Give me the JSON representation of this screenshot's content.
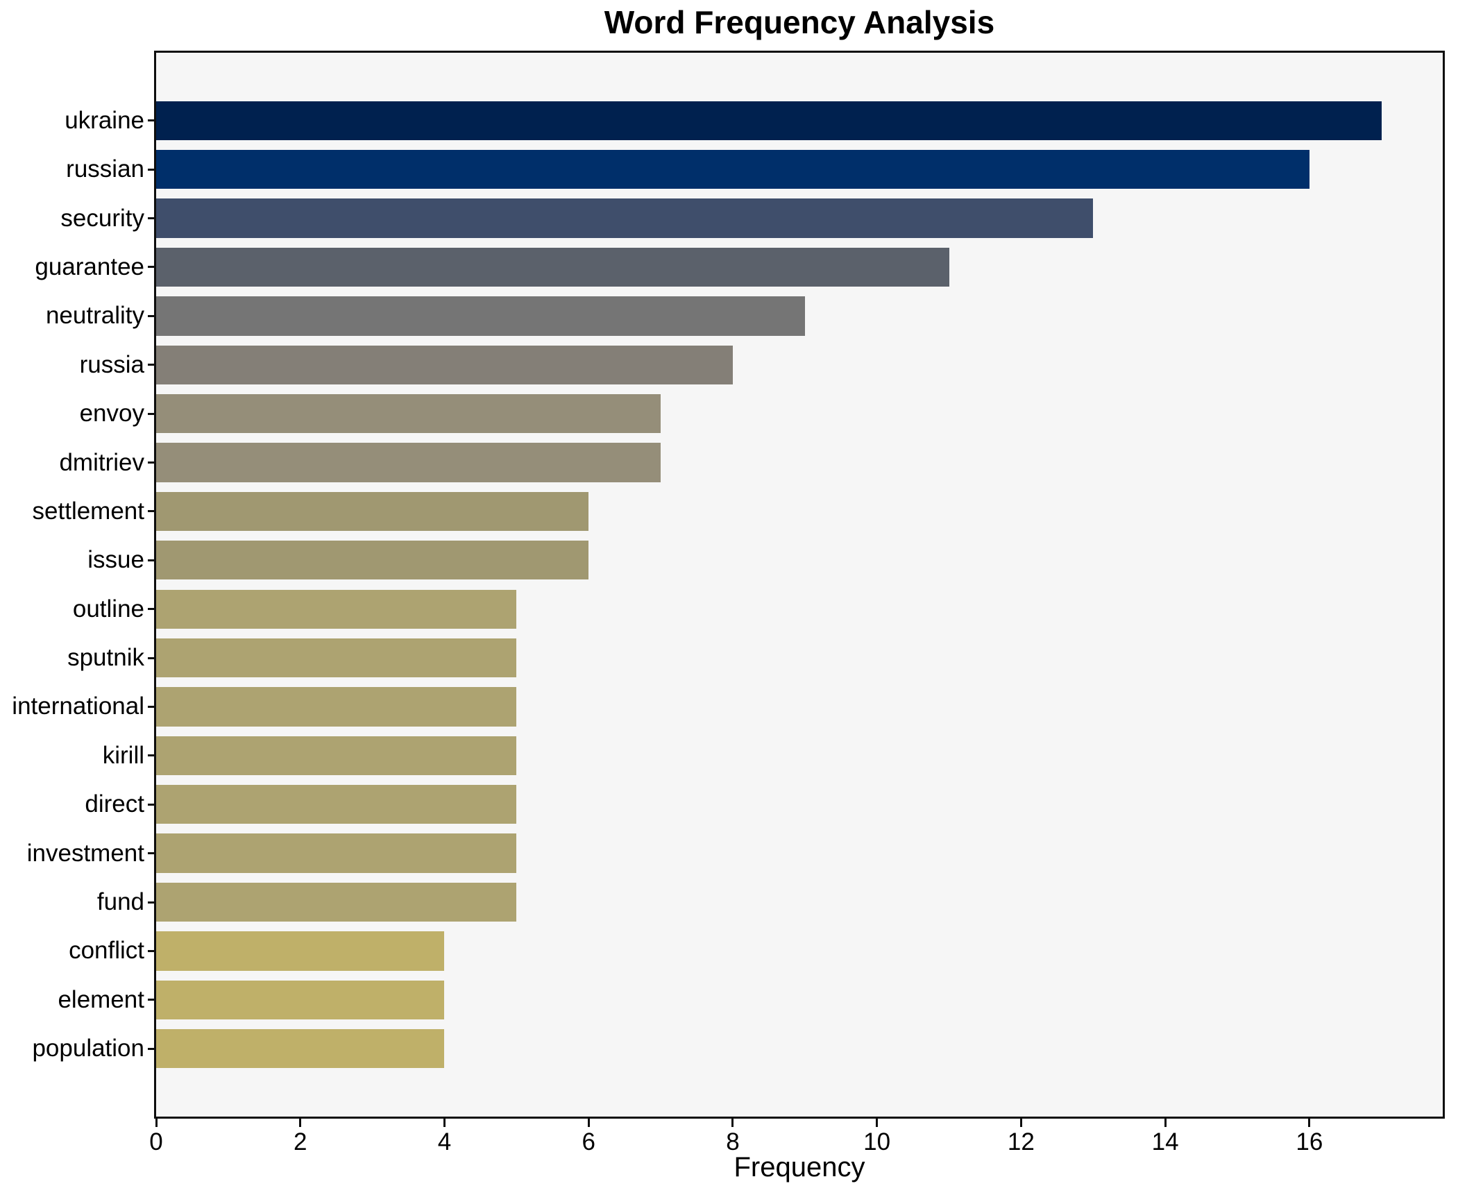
{
  "chart_data": {
    "type": "bar",
    "orientation": "horizontal",
    "title": "Word Frequency Analysis",
    "xlabel": "Frequency",
    "ylabel": "",
    "categories": [
      "ukraine",
      "russian",
      "security",
      "guarantee",
      "neutrality",
      "russia",
      "envoy",
      "dmitriev",
      "settlement",
      "issue",
      "outline",
      "sputnik",
      "international",
      "kirill",
      "direct",
      "investment",
      "fund",
      "conflict",
      "element",
      "population"
    ],
    "values": [
      17,
      16,
      13,
      11,
      9,
      8,
      7,
      7,
      6,
      6,
      5,
      5,
      5,
      5,
      5,
      5,
      5,
      4,
      4,
      4
    ],
    "bar_colors": [
      "#00214f",
      "#002f6a",
      "#3f4e6b",
      "#5b616b",
      "#757575",
      "#847f77",
      "#958e79",
      "#958e79",
      "#a09871",
      "#a09871",
      "#ada371",
      "#ada371",
      "#ada371",
      "#ada371",
      "#ada371",
      "#ada371",
      "#ada371",
      "#bfb069",
      "#bfb069",
      "#bfb069"
    ],
    "x_ticks": [
      0,
      2,
      4,
      6,
      8,
      10,
      12,
      14,
      16
    ],
    "xlim": [
      0,
      17.85
    ],
    "grid": false,
    "legend_position": "none",
    "plot_background": "#f6f6f6",
    "figure_background": "#ffffff",
    "spine_color": "#0e0e0e"
  }
}
